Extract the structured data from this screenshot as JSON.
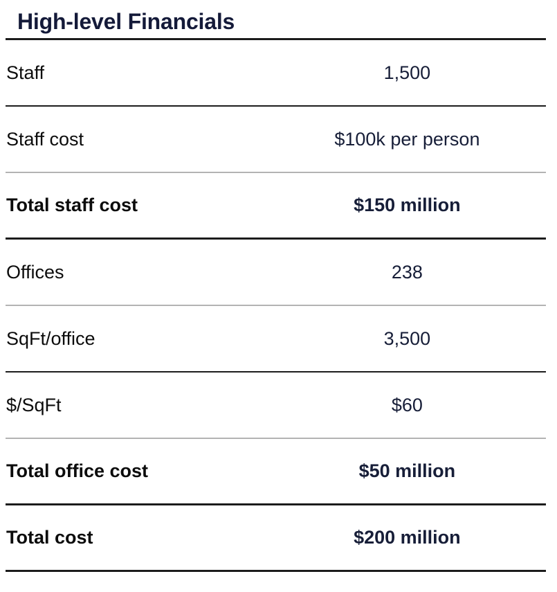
{
  "title": "High-level Financials",
  "colors": {
    "title_color": "#141a39",
    "label_color": "#0c0c0c",
    "value_color": "#171e38",
    "divider_dark": "#1c1c1c",
    "divider_light": "#b3b3b3",
    "bg": "#ffffff"
  },
  "table": {
    "rows": [
      {
        "label": "Staff",
        "value": "1,500",
        "emphasis": false,
        "divider": "dark"
      },
      {
        "label": "Staff cost",
        "value": "$100k per person",
        "emphasis": false,
        "divider": "light"
      },
      {
        "label": "Total staff cost",
        "value": "$150 million",
        "emphasis": true,
        "divider": "dark-thick"
      },
      {
        "label": "Offices",
        "value": "238",
        "emphasis": false,
        "divider": "light"
      },
      {
        "label": "SqFt/office",
        "value": "3,500",
        "emphasis": false,
        "divider": "dark"
      },
      {
        "label": "$/SqFt",
        "value": "$60",
        "emphasis": false,
        "divider": "light"
      },
      {
        "label": "Total office cost",
        "value": "$50 million",
        "emphasis": true,
        "divider": "dark-thick"
      },
      {
        "label": "Total cost",
        "value": "$200 million",
        "emphasis": true,
        "divider": "dark-thick"
      }
    ]
  }
}
